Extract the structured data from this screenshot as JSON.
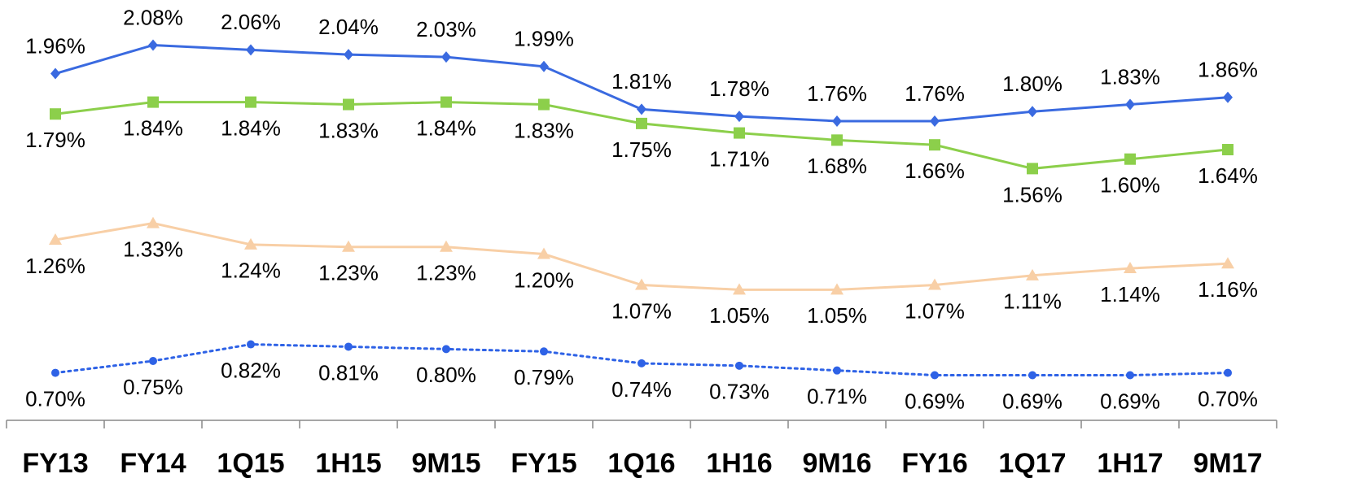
{
  "chart_data": {
    "type": "line",
    "categories": [
      "FY13",
      "FY14",
      "1Q15",
      "1H15",
      "9M15",
      "FY15",
      "1Q16",
      "1H16",
      "9M16",
      "FY16",
      "1Q17",
      "1H17",
      "9M17"
    ],
    "ylim": [
      0.5,
      2.27
    ],
    "series": [
      {
        "color": "#3a6ae0",
        "marker": "diamond",
        "dash": "solid",
        "label_position": "above",
        "values": [
          1.96,
          2.08,
          2.06,
          2.04,
          2.03,
          1.99,
          1.81,
          1.78,
          1.76,
          1.76,
          1.8,
          1.83,
          1.86
        ],
        "value_labels": [
          "1.96%",
          "2.08%",
          "2.06%",
          "2.04%",
          "2.03%",
          "1.99%",
          "1.81%",
          "1.78%",
          "1.76%",
          "1.76%",
          "1.80%",
          "1.83%",
          "1.86%"
        ]
      },
      {
        "color": "#8ccf4b",
        "marker": "square",
        "dash": "solid",
        "label_position": "below",
        "values": [
          1.79,
          1.84,
          1.84,
          1.83,
          1.84,
          1.83,
          1.75,
          1.71,
          1.68,
          1.66,
          1.56,
          1.6,
          1.64
        ],
        "value_labels": [
          "1.79%",
          "1.84%",
          "1.84%",
          "1.83%",
          "1.84%",
          "1.83%",
          "1.75%",
          "1.71%",
          "1.68%",
          "1.66%",
          "1.56%",
          "1.60%",
          "1.64%"
        ]
      },
      {
        "color": "#f8cfa6",
        "marker": "triangle",
        "dash": "solid",
        "label_position": "below",
        "values": [
          1.26,
          1.33,
          1.24,
          1.23,
          1.23,
          1.2,
          1.07,
          1.05,
          1.05,
          1.07,
          1.11,
          1.14,
          1.16
        ],
        "value_labels": [
          "1.26%",
          "1.33%",
          "1.24%",
          "1.23%",
          "1.23%",
          "1.20%",
          "1.07%",
          "1.05%",
          "1.05%",
          "1.07%",
          "1.11%",
          "1.14%",
          "1.16%"
        ]
      },
      {
        "color": "#2e62e6",
        "marker": "circle",
        "dash": "dotted",
        "label_position": "below",
        "values": [
          0.7,
          0.75,
          0.82,
          0.81,
          0.8,
          0.79,
          0.74,
          0.73,
          0.71,
          0.69,
          0.69,
          0.69,
          0.7
        ],
        "value_labels": [
          "0.70%",
          "0.75%",
          "0.82%",
          "0.81%",
          "0.80%",
          "0.79%",
          "0.74%",
          "0.73%",
          "0.71%",
          "0.69%",
          "0.69%",
          "0.69%",
          "0.70%"
        ]
      }
    ]
  }
}
